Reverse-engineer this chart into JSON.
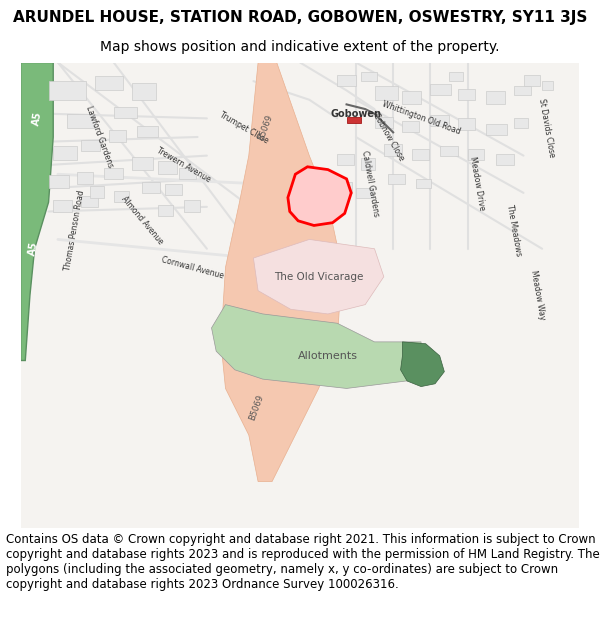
{
  "title_line1": "ARUNDEL HOUSE, STATION ROAD, GOBOWEN, OSWESTRY, SY11 3JS",
  "title_line2": "Map shows position and indicative extent of the property.",
  "footer_text": "Contains OS data © Crown copyright and database right 2021. This information is subject to Crown copyright and database rights 2023 and is reproduced with the permission of HM Land Registry. The polygons (including the associated geometry, namely x, y co-ordinates) are subject to Crown copyright and database rights 2023 Ordnance Survey 100026316.",
  "map_bg": "#f5f3f0",
  "road_color": "#f5c8b0",
  "road_outline": "#e8b090",
  "building_fill": "#e8e8e8",
  "building_outline": "#cccccc",
  "green_area": "#b8d9b0",
  "dark_green": "#5a9060",
  "plot_fill": "#ffdddd",
  "plot_outline": "#ff0000",
  "road_label_color": "#555555",
  "text_color": "#333333",
  "title_fontsize": 11,
  "subtitle_fontsize": 10,
  "footer_fontsize": 8.5,
  "fig_width": 6.0,
  "fig_height": 6.25
}
